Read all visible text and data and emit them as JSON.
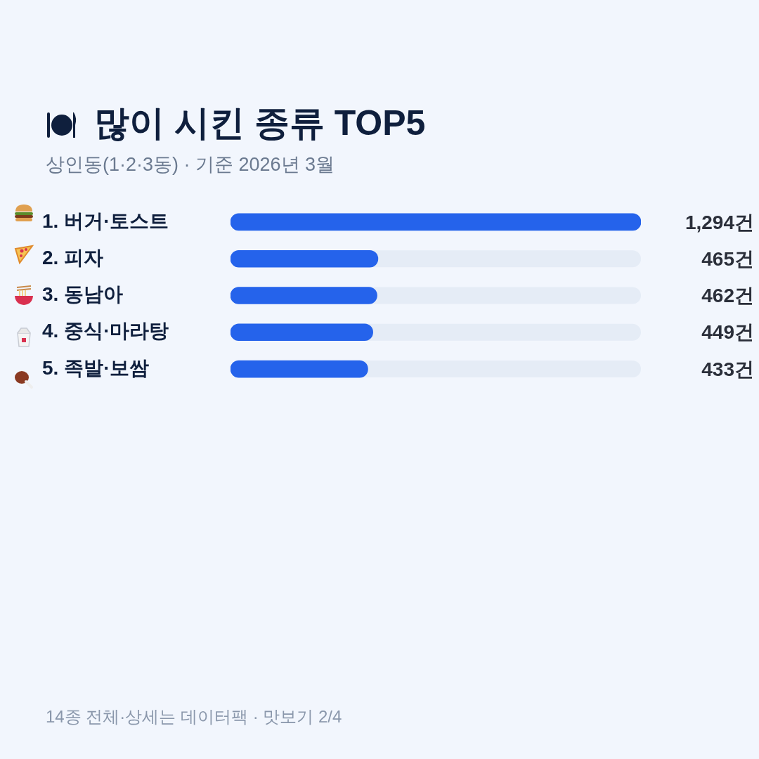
{
  "chart_data": {
    "type": "bar",
    "orientation": "horizontal",
    "title": "많이 시킨 종류 TOP5",
    "subtitle": "상인동(1·2·3동) · 기준 2026년 3월",
    "categories": [
      "1. 버거·토스트",
      "2. 피자",
      "3. 동남아",
      "4. 중식·마라탕",
      "5. 족발·보쌈"
    ],
    "values": [
      1294,
      465,
      462,
      449,
      433
    ],
    "value_labels": [
      "1,294건",
      "465건",
      "462건",
      "449건",
      "433건"
    ],
    "color": "#2563eb",
    "xlim": [
      0,
      1294
    ],
    "tick_labels": "y",
    "grid": false,
    "annotations": [
      "14종 전체·상세는 데이터팩 · 맛보기 2/4"
    ]
  }
}
